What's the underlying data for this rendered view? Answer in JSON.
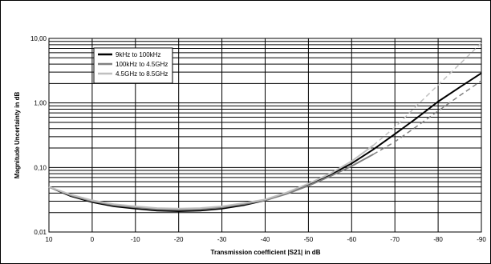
{
  "chart_data": {
    "type": "line",
    "title": "",
    "xlabel": "Transmission coefficient |S21| in dB",
    "ylabel": "Magnitude Uncertainty in dB",
    "xlim": [
      10,
      -90
    ],
    "ylim": [
      0.01,
      10
    ],
    "y_scale": "log",
    "grid": true,
    "legend_position": "top-left",
    "x_ticks": [
      10,
      0,
      -10,
      -20,
      -30,
      -40,
      -50,
      -60,
      -70,
      -80,
      -90
    ],
    "x_tick_labels": [
      "10",
      "0",
      "-10",
      "-20",
      "-30",
      "-40",
      "-50",
      "-60",
      "-70",
      "-80",
      "-90"
    ],
    "y_ticks": [
      0.01,
      0.1,
      1,
      10
    ],
    "y_tick_labels": [
      "0,01",
      "0,10",
      "1,00",
      "10,00"
    ],
    "series": [
      {
        "name": "9kHz to 100kHz",
        "color": "#000000",
        "dashed_segment": [],
        "x": [
          10,
          5,
          0,
          -5,
          -10,
          -15,
          -20,
          -25,
          -30,
          -35,
          -40,
          -45,
          -50,
          -55,
          -60,
          -65,
          -70,
          -75,
          -80,
          -85,
          -90
        ],
        "y": [
          0.05,
          0.036,
          0.029,
          0.025,
          0.023,
          0.0215,
          0.021,
          0.0215,
          0.023,
          0.026,
          0.031,
          0.04,
          0.054,
          0.077,
          0.115,
          0.19,
          0.33,
          0.58,
          1.05,
          1.75,
          2.9
        ]
      },
      {
        "name": "100kHz to 4.5GHz",
        "color": "#808080",
        "dashed_segment": [
          -68,
          -90
        ],
        "x": [
          10,
          5,
          0,
          -5,
          -10,
          -15,
          -20,
          -25,
          -30,
          -35,
          -40,
          -45,
          -50,
          -55,
          -60,
          -65,
          -70,
          -75,
          -80,
          -85,
          -90
        ],
        "y": [
          0.05,
          0.037,
          0.03,
          0.026,
          0.024,
          0.0225,
          0.022,
          0.0225,
          0.024,
          0.027,
          0.031,
          0.039,
          0.052,
          0.073,
          0.105,
          0.16,
          0.25,
          0.43,
          0.75,
          1.3,
          2.2
        ]
      },
      {
        "name": "4.5GHz to 8.5GHz",
        "color": "#c0c0c0",
        "dashed_segment": [
          -68,
          -90
        ],
        "x": [
          10,
          5,
          0,
          -5,
          -10,
          -15,
          -20,
          -25,
          -30,
          -35,
          -40,
          -45,
          -50,
          -55,
          -60,
          -65,
          -70,
          -75,
          -80,
          -85,
          -90
        ],
        "y": [
          0.05,
          0.038,
          0.031,
          0.027,
          0.025,
          0.0235,
          0.023,
          0.0235,
          0.025,
          0.028,
          0.032,
          0.041,
          0.056,
          0.08,
          0.125,
          0.22,
          0.42,
          0.9,
          1.9,
          4.0,
          8.5
        ]
      }
    ]
  }
}
